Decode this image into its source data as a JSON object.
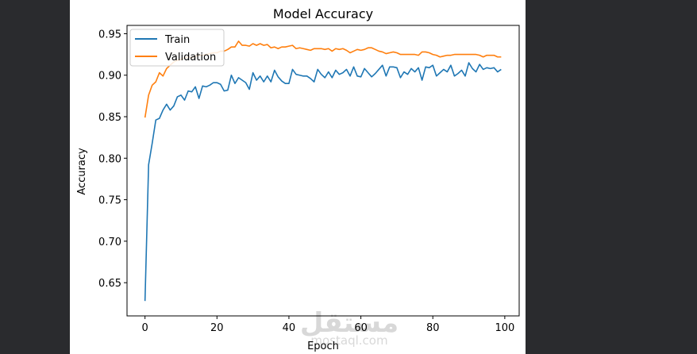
{
  "watermark": {
    "brand": "مستقل",
    "domain": "mostaql.com"
  },
  "colors": {
    "train": "#1f77b4",
    "validation": "#ff7f0e",
    "frame": "#000000",
    "background": "#ffffff",
    "outside": "#2a2b2e"
  },
  "chart_data": {
    "type": "line",
    "title": "Model Accuracy",
    "xlabel": "Epoch",
    "ylabel": "Accuracy",
    "xlim": [
      -5,
      104
    ],
    "ylim": [
      0.61,
      0.96
    ],
    "xticks": [
      0,
      20,
      40,
      60,
      80,
      100
    ],
    "yticks": [
      0.65,
      0.7,
      0.75,
      0.8,
      0.85,
      0.9,
      0.95
    ],
    "xtick_labels": [
      "0",
      "20",
      "40",
      "60",
      "80",
      "100"
    ],
    "ytick_labels": [
      "0.65",
      "0.70",
      "0.75",
      "0.80",
      "0.85",
      "0.90",
      "0.95"
    ],
    "grid": false,
    "legend_position": "upper-left",
    "x": [
      0,
      1,
      2,
      3,
      4,
      5,
      6,
      7,
      8,
      9,
      10,
      11,
      12,
      13,
      14,
      15,
      16,
      17,
      18,
      19,
      20,
      21,
      22,
      23,
      24,
      25,
      26,
      27,
      28,
      29,
      30,
      31,
      32,
      33,
      34,
      35,
      36,
      37,
      38,
      39,
      40,
      41,
      42,
      43,
      44,
      45,
      46,
      47,
      48,
      49,
      50,
      51,
      52,
      53,
      54,
      55,
      56,
      57,
      58,
      59,
      60,
      61,
      62,
      63,
      64,
      65,
      66,
      67,
      68,
      69,
      70,
      71,
      72,
      73,
      74,
      75,
      76,
      77,
      78,
      79,
      80,
      81,
      82,
      83,
      84,
      85,
      86,
      87,
      88,
      89,
      90,
      91,
      92,
      93,
      94,
      95,
      96,
      97,
      98,
      99
    ],
    "series": [
      {
        "name": "Train",
        "color": "#1f77b4",
        "values": [
          0.628,
          0.792,
          0.818,
          0.846,
          0.848,
          0.858,
          0.865,
          0.858,
          0.863,
          0.874,
          0.876,
          0.87,
          0.881,
          0.88,
          0.886,
          0.872,
          0.887,
          0.886,
          0.888,
          0.891,
          0.891,
          0.889,
          0.881,
          0.882,
          0.9,
          0.89,
          0.897,
          0.894,
          0.891,
          0.883,
          0.903,
          0.894,
          0.899,
          0.892,
          0.899,
          0.892,
          0.906,
          0.898,
          0.893,
          0.89,
          0.89,
          0.907,
          0.901,
          0.9,
          0.899,
          0.899,
          0.896,
          0.892,
          0.907,
          0.901,
          0.897,
          0.904,
          0.897,
          0.906,
          0.901,
          0.903,
          0.907,
          0.899,
          0.91,
          0.899,
          0.898,
          0.908,
          0.903,
          0.898,
          0.902,
          0.907,
          0.912,
          0.899,
          0.91,
          0.91,
          0.909,
          0.897,
          0.904,
          0.901,
          0.908,
          0.904,
          0.909,
          0.894,
          0.91,
          0.909,
          0.912,
          0.899,
          0.903,
          0.907,
          0.904,
          0.912,
          0.899,
          0.902,
          0.906,
          0.899,
          0.915,
          0.908,
          0.904,
          0.913,
          0.907,
          0.909,
          0.908,
          0.909,
          0.904,
          0.907
        ]
      },
      {
        "name": "Validation",
        "color": "#ff7f0e",
        "values": [
          0.849,
          0.876,
          0.888,
          0.892,
          0.903,
          0.899,
          0.908,
          0.912,
          0.916,
          0.918,
          0.919,
          0.921,
          0.922,
          0.921,
          0.923,
          0.924,
          0.924,
          0.925,
          0.926,
          0.927,
          0.927,
          0.929,
          0.929,
          0.931,
          0.934,
          0.934,
          0.941,
          0.936,
          0.936,
          0.935,
          0.938,
          0.936,
          0.938,
          0.936,
          0.937,
          0.933,
          0.934,
          0.932,
          0.934,
          0.934,
          0.935,
          0.936,
          0.932,
          0.933,
          0.932,
          0.931,
          0.93,
          0.932,
          0.932,
          0.932,
          0.931,
          0.932,
          0.929,
          0.932,
          0.931,
          0.932,
          0.93,
          0.927,
          0.929,
          0.931,
          0.93,
          0.931,
          0.933,
          0.933,
          0.931,
          0.929,
          0.928,
          0.926,
          0.927,
          0.928,
          0.927,
          0.925,
          0.925,
          0.925,
          0.925,
          0.925,
          0.924,
          0.928,
          0.928,
          0.927,
          0.925,
          0.924,
          0.922,
          0.923,
          0.924,
          0.924,
          0.925,
          0.925,
          0.925,
          0.925,
          0.925,
          0.925,
          0.925,
          0.924,
          0.922,
          0.924,
          0.924,
          0.924,
          0.922,
          0.922
        ]
      }
    ]
  }
}
